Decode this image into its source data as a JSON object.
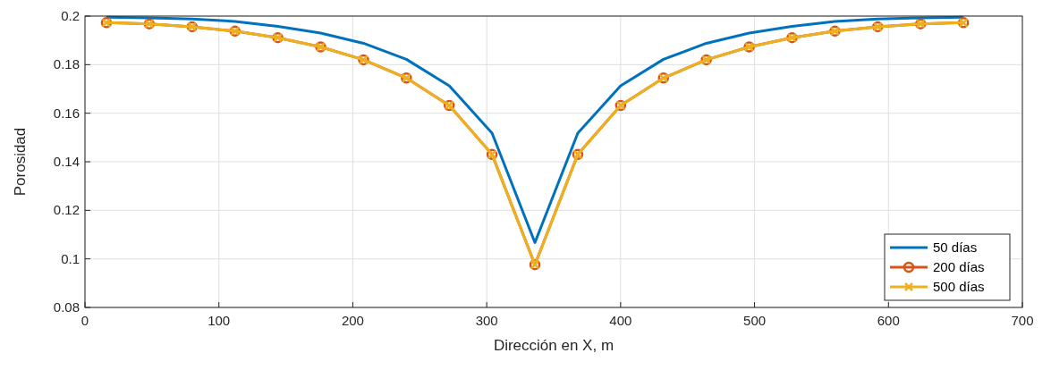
{
  "chart_data": {
    "type": "line",
    "xlabel": "Dirección en X, m",
    "ylabel": "Porosidad",
    "x": [
      16,
      48,
      80,
      112,
      144,
      176,
      208,
      240,
      272,
      304,
      336,
      368,
      400,
      432,
      464,
      496,
      528,
      560,
      592,
      624,
      656
    ],
    "xlim": [
      0,
      700
    ],
    "xticks": [
      0,
      100,
      200,
      300,
      400,
      500,
      600,
      700
    ],
    "ylim": [
      0.08,
      0.2
    ],
    "yticks": [
      0.08,
      0.1,
      0.12,
      0.14,
      0.16,
      0.18,
      0.2
    ],
    "grid": true,
    "legend": "bottom right",
    "series": [
      {
        "name": "50 días",
        "color": "#0072bd",
        "marker": "none",
        "values": [
          0.1995,
          0.1993,
          0.1988,
          0.1978,
          0.1958,
          0.193,
          0.1888,
          0.1822,
          0.1713,
          0.1518,
          0.1067,
          0.1518,
          0.1713,
          0.1822,
          0.1888,
          0.193,
          0.1958,
          0.1978,
          0.1988,
          0.1993,
          0.1995
        ]
      },
      {
        "name": "200 días",
        "color": "#d95319",
        "marker": "circle",
        "values": [
          0.1973,
          0.1968,
          0.1956,
          0.1938,
          0.1911,
          0.1873,
          0.182,
          0.1745,
          0.1632,
          0.143,
          0.0976,
          0.143,
          0.1632,
          0.1745,
          0.182,
          0.1873,
          0.1911,
          0.1938,
          0.1956,
          0.1968,
          0.1973
        ]
      },
      {
        "name": "500 días",
        "color": "#edb120",
        "marker": "cross",
        "values": [
          0.1973,
          0.1968,
          0.1956,
          0.1938,
          0.1911,
          0.1873,
          0.182,
          0.1745,
          0.1632,
          0.143,
          0.0976,
          0.143,
          0.1632,
          0.1745,
          0.182,
          0.1873,
          0.1911,
          0.1938,
          0.1956,
          0.1968,
          0.1973
        ]
      }
    ]
  }
}
